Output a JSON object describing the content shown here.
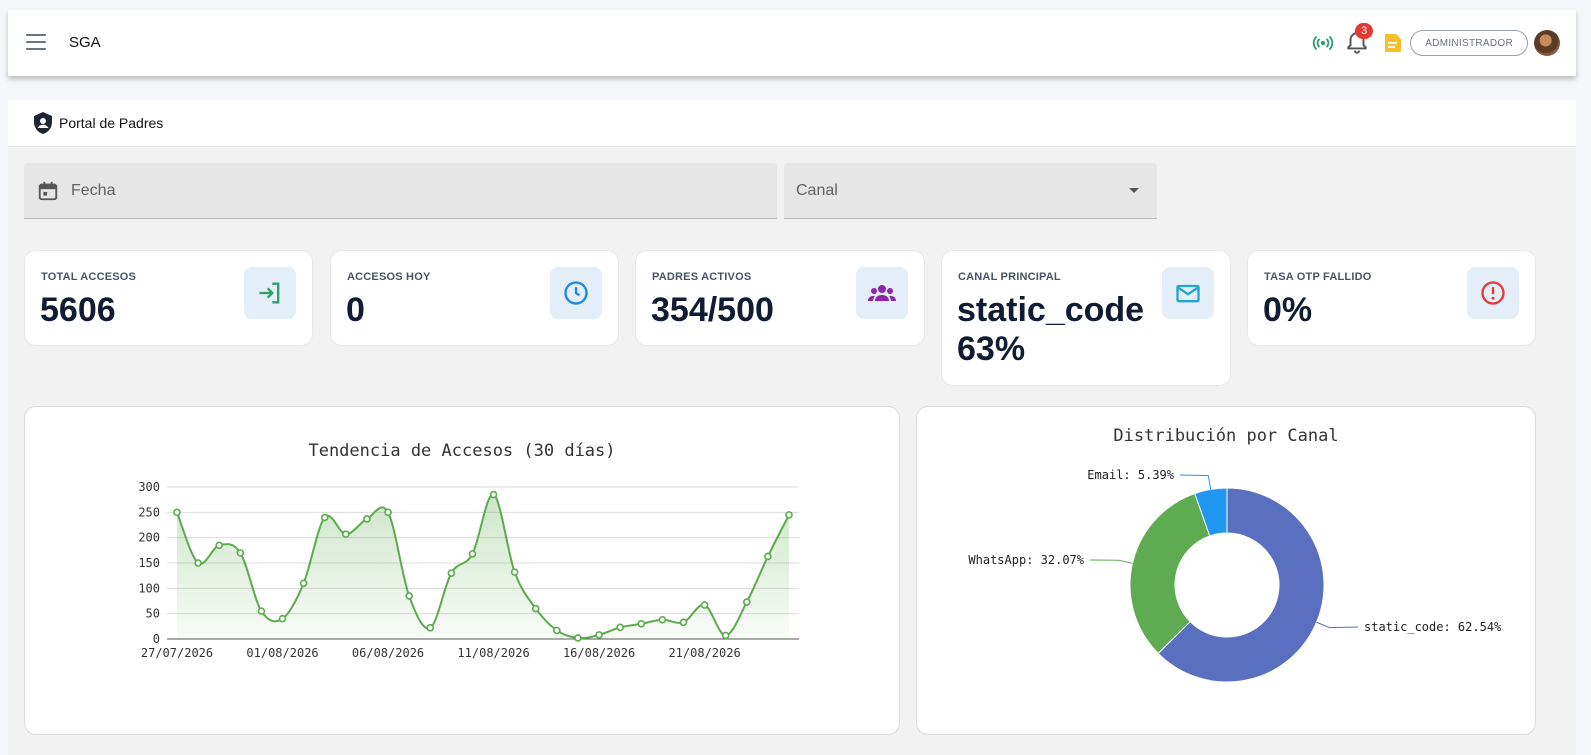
{
  "app": {
    "title": "SGA",
    "role": "ADMINISTRADOR",
    "notifications": "3"
  },
  "icons": {
    "menu": "hamburger-icon",
    "live": "broadcast-icon",
    "bell": "bell-icon",
    "note": "note-icon",
    "shield": "shield-user-icon",
    "calendar": "calendar-icon"
  },
  "portal": {
    "title": "Portal de Padres"
  },
  "filters": {
    "date_label": "Fecha",
    "canal_label": "Canal"
  },
  "stats": [
    {
      "label": "TOTAL ACCESOS",
      "value": "5606",
      "icon": "login-icon",
      "color": "#2e9e6e"
    },
    {
      "label": "ACCESOS HOY",
      "value": "0",
      "icon": "clock-icon",
      "color": "#1e88e5"
    },
    {
      "label": "PADRES ACTIVOS",
      "value": "354/500",
      "icon": "group-icon",
      "color": "#8e24aa"
    },
    {
      "label": "CANAL PRINCIPAL",
      "value": "static_code 63%",
      "icon": "mail-icon",
      "color": "#22a6c9"
    },
    {
      "label": "TASA OTP FALLIDO",
      "value": "0%",
      "icon": "alert-circle-icon",
      "color": "#e53935"
    }
  ],
  "chart_data": [
    {
      "type": "area",
      "title": "Tendencia de Accesos (30 días)",
      "x": [
        "27/07/2026",
        "28/07/2026",
        "29/07/2026",
        "30/07/2026",
        "31/07/2026",
        "01/08/2026",
        "02/08/2026",
        "03/08/2026",
        "04/08/2026",
        "05/08/2026",
        "06/08/2026",
        "07/08/2026",
        "08/08/2026",
        "09/08/2026",
        "10/08/2026",
        "11/08/2026",
        "12/08/2026",
        "13/08/2026",
        "14/08/2026",
        "15/08/2026",
        "16/08/2026",
        "17/08/2026",
        "18/08/2026",
        "19/08/2026",
        "20/08/2026",
        "21/08/2026",
        "22/08/2026",
        "23/08/2026",
        "24/08/2026",
        "25/08/2026"
      ],
      "values": [
        250,
        150,
        185,
        170,
        55,
        40,
        110,
        240,
        207,
        237,
        250,
        85,
        22,
        130,
        168,
        285,
        132,
        60,
        17,
        2,
        8,
        23,
        30,
        38,
        33,
        67,
        7,
        73,
        163,
        245
      ],
      "xticks": [
        "27/07/2026",
        "01/08/2026",
        "06/08/2026",
        "11/08/2026",
        "16/08/2026",
        "21/08/2026"
      ],
      "yticks": [
        0,
        50,
        100,
        150,
        200,
        250,
        300
      ],
      "ylim": [
        0,
        300
      ],
      "color": "#5aab4c",
      "grid": true
    },
    {
      "type": "pie",
      "title": "Distribución por Canal",
      "labels": [
        "static_code",
        "WhatsApp",
        "Email"
      ],
      "values": [
        62.54,
        32.07,
        5.39
      ],
      "data_labels": [
        "static_code: 62.54%",
        "WhatsApp: 32.07%",
        "Email: 5.39%"
      ],
      "colors": [
        "#5b6fc0",
        "#5eab52",
        "#2196f3"
      ],
      "donut": true
    }
  ]
}
